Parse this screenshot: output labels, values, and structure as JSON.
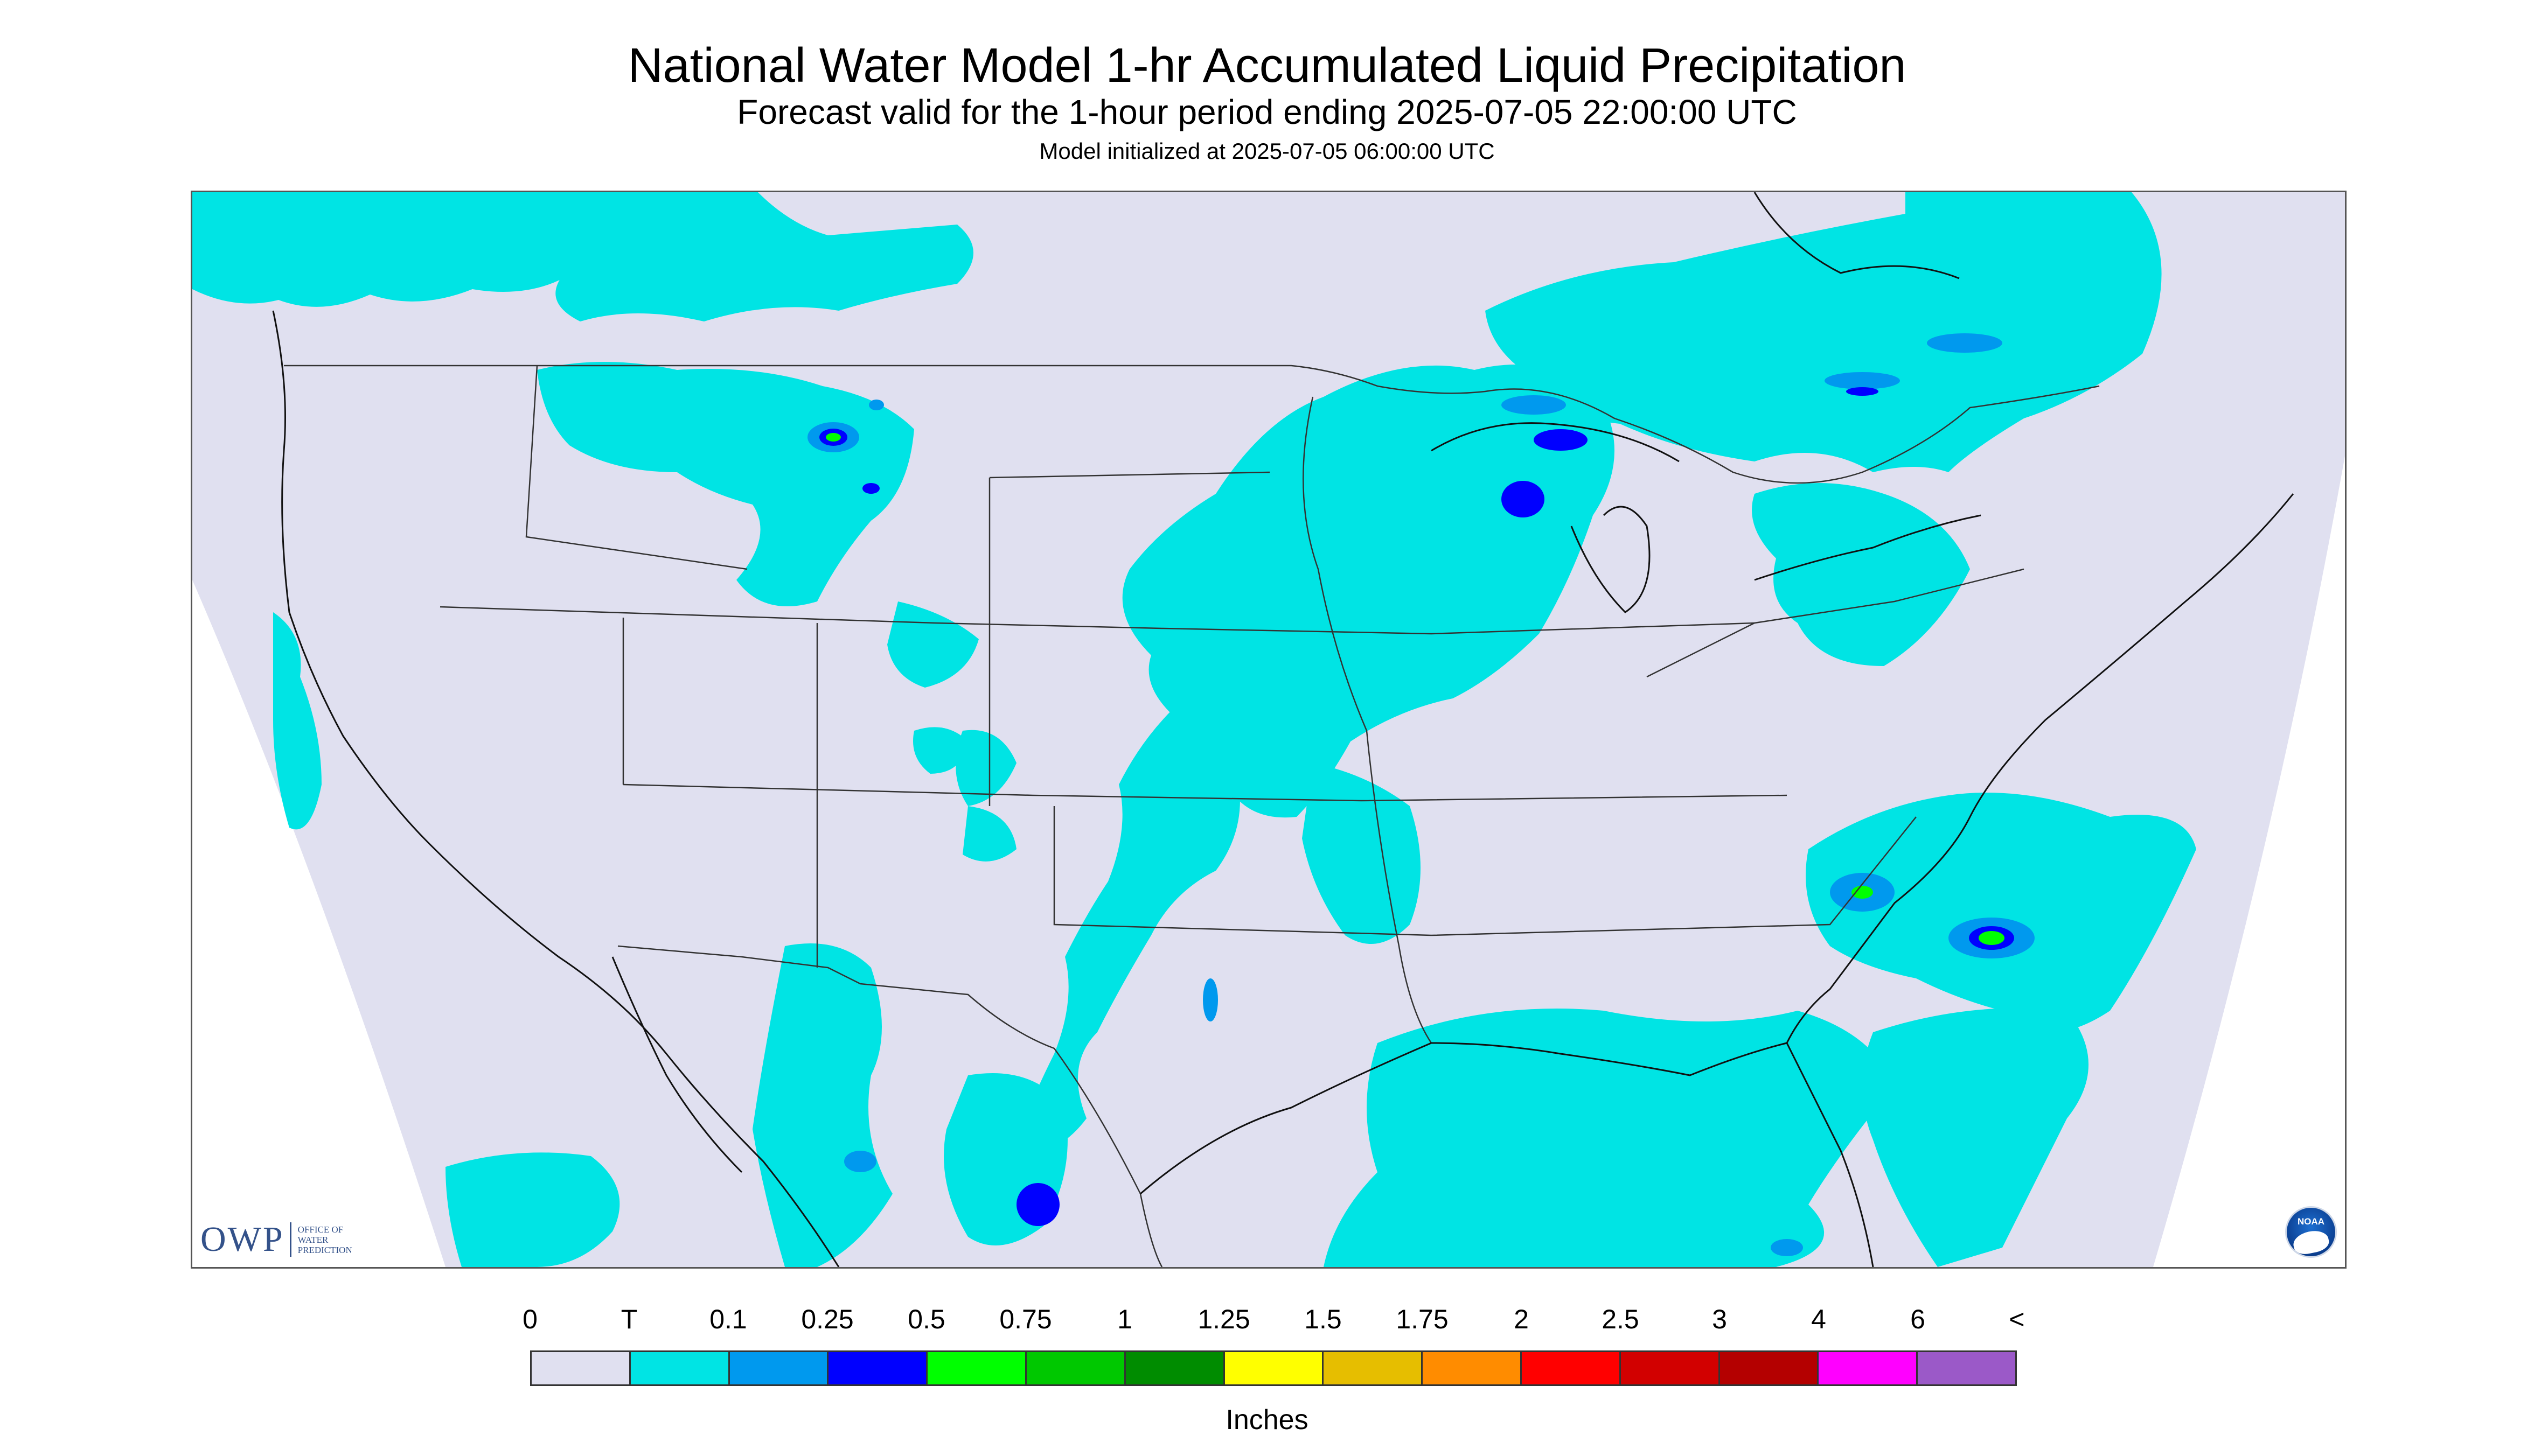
{
  "header": {
    "title": "National Water Model 1-hr Accumulated Liquid Precipitation",
    "subtitle": "Forecast valid for the 1-hour period ending 2025-07-05 22:00:00 UTC",
    "init": "Model initialized at 2025-07-05 06:00:00 UTC"
  },
  "map": {
    "colors": {
      "background": "#e0e0f0",
      "trace": "#00e4e4",
      "light_blue": "#0099ee",
      "blue": "#0000ff",
      "green": "#00ff00",
      "border": "#333333"
    }
  },
  "logos": {
    "owp_mark": "OWP",
    "owp_lines": [
      "OFFICE OF",
      "WATER",
      "PREDICTION"
    ],
    "noaa": "NOAA"
  },
  "legend": {
    "labels": [
      "0",
      "T",
      "0.1",
      "0.25",
      "0.5",
      "0.75",
      "1",
      "1.25",
      "1.5",
      "1.75",
      "2",
      "2.5",
      "3",
      "4",
      "6",
      "<"
    ],
    "colors": [
      "#e0e0f0",
      "#00e4e4",
      "#0099ee",
      "#0000ff",
      "#00ff00",
      "#00c800",
      "#008c00",
      "#ffff00",
      "#e6be00",
      "#ff8c00",
      "#ff0000",
      "#d20000",
      "#b40000",
      "#ff00ff",
      "#9b59c8"
    ],
    "units": "Inches"
  }
}
